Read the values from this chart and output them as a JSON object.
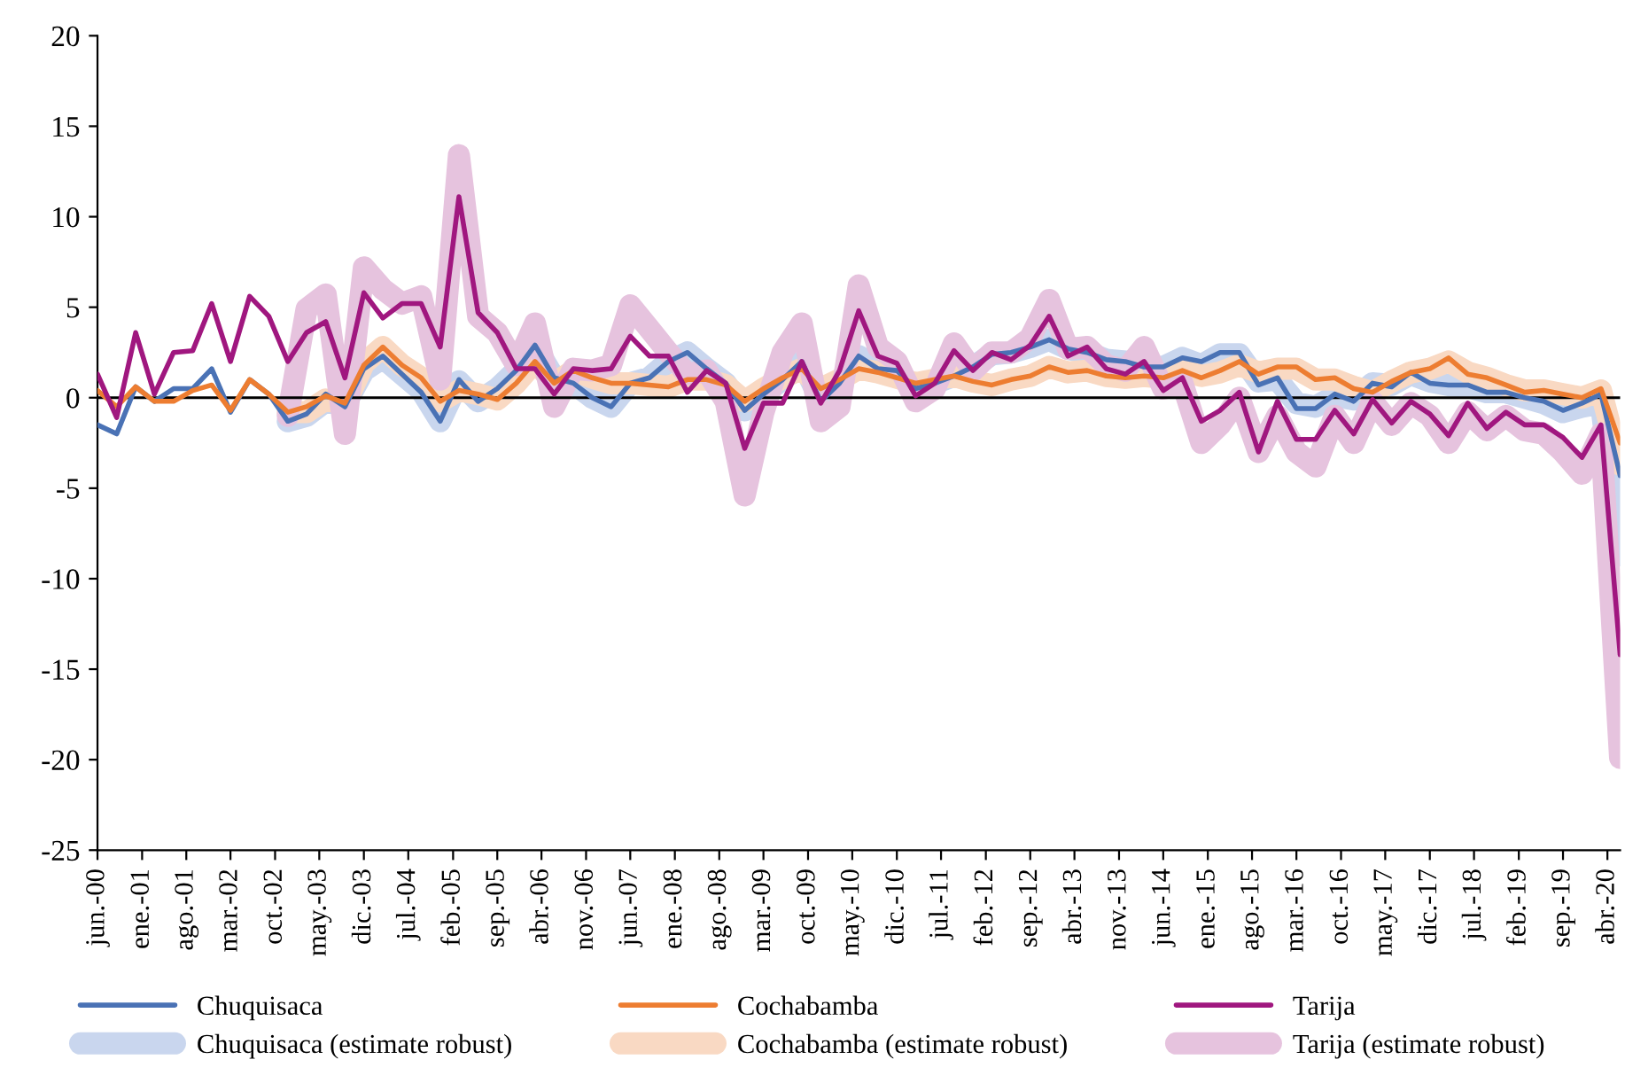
{
  "chart_data": {
    "type": "line",
    "x": [
      "2000-06",
      "2000-09",
      "2000-12",
      "2001-03",
      "2001-06",
      "2001-09",
      "2001-12",
      "2002-03",
      "2002-06",
      "2002-09",
      "2002-12",
      "2003-03",
      "2003-06",
      "2003-09",
      "2003-12",
      "2004-03",
      "2004-06",
      "2004-09",
      "2004-12",
      "2005-03",
      "2005-06",
      "2005-09",
      "2005-12",
      "2006-03",
      "2006-06",
      "2006-09",
      "2006-12",
      "2007-03",
      "2007-06",
      "2007-09",
      "2007-12",
      "2008-03",
      "2008-06",
      "2008-09",
      "2008-12",
      "2009-03",
      "2009-06",
      "2009-09",
      "2009-12",
      "2010-03",
      "2010-06",
      "2010-09",
      "2010-12",
      "2011-03",
      "2011-06",
      "2011-09",
      "2011-12",
      "2012-03",
      "2012-06",
      "2012-09",
      "2012-12",
      "2013-03",
      "2013-06",
      "2013-09",
      "2013-12",
      "2014-03",
      "2014-06",
      "2014-09",
      "2014-12",
      "2015-03",
      "2015-06",
      "2015-09",
      "2015-12",
      "2016-03",
      "2016-06",
      "2016-09",
      "2016-12",
      "2017-03",
      "2017-06",
      "2017-09",
      "2017-12",
      "2018-03",
      "2018-06",
      "2018-09",
      "2018-12",
      "2019-03",
      "2019-06",
      "2019-09",
      "2019-12",
      "2020-03",
      "2020-06"
    ],
    "series": [
      {
        "name": "Chuquisaca (estimate robust)",
        "color": "#c9d6ee",
        "values": [
          null,
          null,
          null,
          null,
          null,
          null,
          null,
          null,
          null,
          null,
          -1.3,
          -1.0,
          -0.2,
          -0.4,
          1.5,
          2.2,
          1.3,
          0.4,
          -1.3,
          0.9,
          -0.2,
          0.5,
          1.5,
          2.9,
          1.1,
          0.8,
          0.0,
          -0.5,
          0.8,
          1.1,
          2.0,
          2.5,
          1.6,
          0.8,
          -0.7,
          0.2,
          1.0,
          2.0,
          -0.2,
          0.8,
          2.3,
          1.6,
          1.5,
          0.5,
          0.8,
          1.2,
          1.7,
          2.4,
          2.5,
          2.8,
          3.2,
          2.7,
          2.5,
          2.1,
          2.0,
          1.7,
          1.7,
          2.2,
          1.8,
          2.4,
          2.4,
          0.9,
          1.0,
          -0.3,
          -0.5,
          0.1,
          -0.1,
          0.8,
          0.7,
          1.3,
          0.9,
          0.7,
          0.6,
          0.3,
          0.3,
          0.0,
          -0.3,
          -0.8,
          -0.5,
          -0.3,
          -8.7
        ]
      },
      {
        "name": "Cochabamba (estimate robust)",
        "color": "#f9d9c3",
        "values": [
          null,
          null,
          null,
          null,
          null,
          null,
          null,
          null,
          null,
          null,
          -0.8,
          -0.8,
          -0.1,
          -0.4,
          1.9,
          2.8,
          1.8,
          1.1,
          -0.2,
          0.4,
          0.2,
          -0.1,
          0.8,
          2.0,
          0.8,
          1.5,
          1.1,
          0.8,
          0.8,
          0.7,
          0.6,
          1.0,
          1.0,
          0.7,
          -0.2,
          0.5,
          1.1,
          1.6,
          0.5,
          1.0,
          1.6,
          1.4,
          1.1,
          0.8,
          1.0,
          1.2,
          0.9,
          0.7,
          1.0,
          1.2,
          1.7,
          1.4,
          1.5,
          1.2,
          1.1,
          1.2,
          1.1,
          1.5,
          1.2,
          1.4,
          1.8,
          1.4,
          1.6,
          1.6,
          1.0,
          1.0,
          0.6,
          0.3,
          0.9,
          1.4,
          1.6,
          2.0,
          1.4,
          1.1,
          0.7,
          0.4,
          0.4,
          0.2,
          0.0,
          0.4,
          -3.7
        ]
      },
      {
        "name": "Tarija (estimate robust)",
        "color": "#e6c3de",
        "values": [
          null,
          null,
          null,
          null,
          null,
          null,
          null,
          null,
          null,
          null,
          -1.0,
          4.9,
          5.7,
          -2.0,
          7.2,
          6.0,
          5.2,
          5.6,
          1.0,
          13.4,
          4.5,
          3.6,
          1.8,
          4.1,
          -0.5,
          1.6,
          1.5,
          1.8,
          5.1,
          3.8,
          2.5,
          1.3,
          1.5,
          -0.2,
          -5.4,
          -0.8,
          2.5,
          4.1,
          -1.3,
          -0.5,
          6.2,
          2.8,
          2.0,
          -0.2,
          0.5,
          3.0,
          1.5,
          2.5,
          2.5,
          3.3,
          5.4,
          2.7,
          2.8,
          1.8,
          1.5,
          2.8,
          0.5,
          0.8,
          -2.5,
          -1.5,
          0.0,
          -3.0,
          -1.0,
          -3.0,
          -3.8,
          -1.0,
          -2.5,
          -0.2,
          -1.5,
          -0.3,
          -1.0,
          -2.5,
          -0.8,
          -1.8,
          -1.0,
          -1.8,
          -2.0,
          -3.0,
          -4.2,
          -2.0,
          -19.9
        ]
      },
      {
        "name": "Chuquisaca",
        "color": "#4a72b5",
        "values": [
          -1.5,
          -2.0,
          0.6,
          -0.2,
          0.5,
          0.5,
          1.6,
          -0.8,
          1.0,
          0.2,
          -1.3,
          -0.9,
          0.2,
          -0.5,
          1.6,
          2.3,
          1.3,
          0.3,
          -1.3,
          1.0,
          -0.2,
          0.5,
          1.5,
          2.9,
          1.1,
          0.8,
          0.0,
          -0.5,
          0.8,
          1.1,
          2.0,
          2.5,
          1.6,
          0.8,
          -0.7,
          0.2,
          1.0,
          2.0,
          -0.2,
          0.8,
          2.3,
          1.6,
          1.5,
          0.5,
          0.8,
          1.2,
          1.7,
          2.4,
          2.5,
          2.8,
          3.2,
          2.7,
          2.5,
          2.1,
          2.0,
          1.7,
          1.7,
          2.2,
          2.0,
          2.5,
          2.5,
          0.7,
          1.1,
          -0.6,
          -0.6,
          0.2,
          -0.2,
          0.8,
          0.6,
          1.4,
          0.8,
          0.7,
          0.7,
          0.3,
          0.3,
          0.0,
          -0.2,
          -0.7,
          -0.3,
          0.2,
          -4.3
        ]
      },
      {
        "name": "Cochabamba",
        "color": "#ed7d31",
        "values": [
          0.4,
          -0.5,
          0.6,
          -0.2,
          -0.2,
          0.4,
          0.7,
          -0.7,
          1.0,
          0.2,
          -0.8,
          -0.5,
          0.1,
          -0.3,
          1.8,
          2.8,
          1.8,
          1.1,
          -0.2,
          0.4,
          0.2,
          -0.1,
          0.8,
          2.0,
          0.8,
          1.5,
          1.1,
          0.8,
          0.8,
          0.7,
          0.6,
          1.0,
          1.0,
          0.7,
          -0.2,
          0.5,
          1.1,
          1.6,
          0.5,
          1.0,
          1.6,
          1.4,
          1.1,
          0.8,
          1.0,
          1.2,
          0.9,
          0.7,
          1.0,
          1.2,
          1.7,
          1.4,
          1.5,
          1.2,
          1.1,
          1.2,
          1.1,
          1.5,
          1.1,
          1.5,
          2.0,
          1.3,
          1.7,
          1.7,
          1.0,
          1.1,
          0.5,
          0.3,
          0.9,
          1.4,
          1.6,
          2.2,
          1.3,
          1.1,
          0.7,
          0.3,
          0.4,
          0.2,
          0.0,
          0.5,
          -2.5
        ]
      },
      {
        "name": "Tarija",
        "color": "#a0177f",
        "values": [
          1.3,
          -1.1,
          3.6,
          0.2,
          2.5,
          2.6,
          5.2,
          2.0,
          5.6,
          4.5,
          2.0,
          3.6,
          4.2,
          1.1,
          5.8,
          4.4,
          5.2,
          5.2,
          2.8,
          11.1,
          4.7,
          3.6,
          1.6,
          1.6,
          0.2,
          1.6,
          1.5,
          1.6,
          3.4,
          2.3,
          2.3,
          0.3,
          1.5,
          0.8,
          -2.8,
          -0.3,
          -0.3,
          2.0,
          -0.3,
          1.5,
          4.8,
          2.3,
          1.9,
          0.1,
          0.8,
          2.6,
          1.5,
          2.5,
          2.1,
          2.9,
          4.5,
          2.3,
          2.8,
          1.6,
          1.3,
          2.0,
          0.4,
          1.1,
          -1.3,
          -0.7,
          0.3,
          -3.0,
          -0.2,
          -2.3,
          -2.3,
          -0.7,
          -2.0,
          -0.1,
          -1.4,
          -0.2,
          -0.9,
          -2.1,
          -0.3,
          -1.7,
          -0.8,
          -1.5,
          -1.5,
          -2.2,
          -3.3,
          -1.5,
          -14.2
        ]
      }
    ],
    "xlim": [
      "2000-06",
      "2020-06"
    ],
    "xticks": [
      {
        "value": "2000-06",
        "label": "jun.-00"
      },
      {
        "value": "2001-01",
        "label": "ene.-01"
      },
      {
        "value": "2001-08",
        "label": "ago.-01"
      },
      {
        "value": "2002-03",
        "label": "mar.-02"
      },
      {
        "value": "2002-10",
        "label": "oct.-02"
      },
      {
        "value": "2003-05",
        "label": "may.-03"
      },
      {
        "value": "2003-12",
        "label": "dic.-03"
      },
      {
        "value": "2004-07",
        "label": "jul.-04"
      },
      {
        "value": "2005-02",
        "label": "feb.-05"
      },
      {
        "value": "2005-09",
        "label": "sep.-05"
      },
      {
        "value": "2006-04",
        "label": "abr.-06"
      },
      {
        "value": "2006-11",
        "label": "nov.-06"
      },
      {
        "value": "2007-06",
        "label": "jun.-07"
      },
      {
        "value": "2008-01",
        "label": "ene.-08"
      },
      {
        "value": "2008-08",
        "label": "ago.-08"
      },
      {
        "value": "2009-03",
        "label": "mar.-09"
      },
      {
        "value": "2009-10",
        "label": "oct.-09"
      },
      {
        "value": "2010-05",
        "label": "may.-10"
      },
      {
        "value": "2010-12",
        "label": "dic.-10"
      },
      {
        "value": "2011-07",
        "label": "jul.-11"
      },
      {
        "value": "2012-02",
        "label": "feb.-12"
      },
      {
        "value": "2012-09",
        "label": "sep.-12"
      },
      {
        "value": "2013-04",
        "label": "abr.-13"
      },
      {
        "value": "2013-11",
        "label": "nov.-13"
      },
      {
        "value": "2014-06",
        "label": "jun.-14"
      },
      {
        "value": "2015-01",
        "label": "ene.-15"
      },
      {
        "value": "2015-08",
        "label": "ago.-15"
      },
      {
        "value": "2016-03",
        "label": "mar.-16"
      },
      {
        "value": "2016-10",
        "label": "oct.-16"
      },
      {
        "value": "2017-05",
        "label": "may.-17"
      },
      {
        "value": "2017-12",
        "label": "dic.-17"
      },
      {
        "value": "2018-07",
        "label": "jul.-18"
      },
      {
        "value": "2019-02",
        "label": "feb.-19"
      },
      {
        "value": "2019-09",
        "label": "sep.-19"
      },
      {
        "value": "2020-04",
        "label": "abr.-20"
      }
    ],
    "ylim": [
      -25,
      20
    ],
    "yticks": [
      -25,
      -20,
      -15,
      -10,
      -5,
      0,
      5,
      10,
      15,
      20
    ],
    "ref_lines": [
      {
        "axis": "y",
        "value": 0,
        "color": "#000000"
      }
    ],
    "grid": false,
    "legend": "bottom",
    "line_style": "solid",
    "marker": "none"
  }
}
